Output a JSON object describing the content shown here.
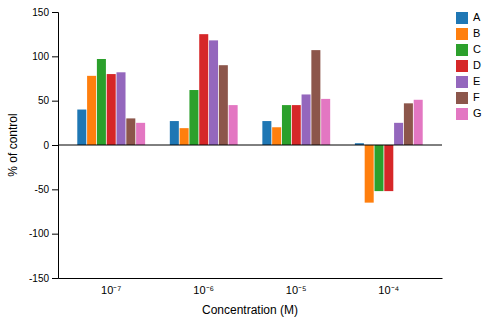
{
  "chart_data": {
    "type": "bar",
    "xlabel": "Concentration (M)",
    "ylabel": "% of control",
    "categories": [
      "10⁻⁷",
      "10⁻⁶",
      "10⁻⁵",
      "10⁻⁴"
    ],
    "series": [
      {
        "name": "A",
        "values": [
          40,
          27,
          27,
          2
        ]
      },
      {
        "name": "B",
        "values": [
          78,
          19,
          20,
          -65
        ]
      },
      {
        "name": "C",
        "values": [
          97,
          62,
          45,
          -52
        ]
      },
      {
        "name": "D",
        "values": [
          80,
          125,
          45,
          -52
        ]
      },
      {
        "name": "E",
        "values": [
          82,
          118,
          57,
          25
        ]
      },
      {
        "name": "F",
        "values": [
          30,
          90,
          107,
          47
        ]
      },
      {
        "name": "G",
        "values": [
          25,
          45,
          52,
          51
        ]
      }
    ],
    "ylim": [
      -150,
      150
    ],
    "yticks": [
      -150,
      -100,
      -50,
      0,
      50,
      100,
      150
    ],
    "legend": "top-right"
  }
}
